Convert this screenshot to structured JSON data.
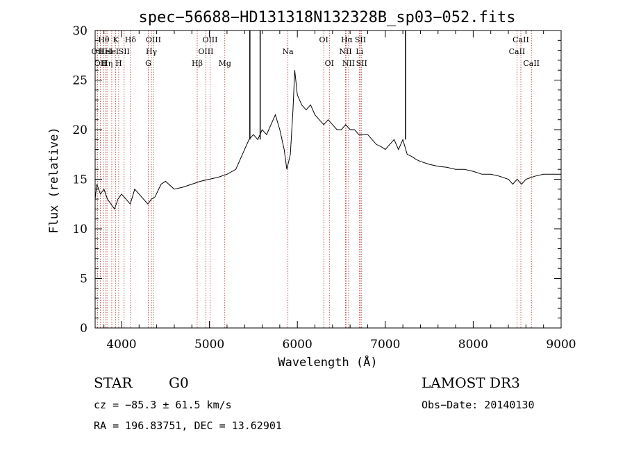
{
  "chart_data": {
    "type": "line",
    "title": "spec−56688−HD131318N132328B_sp03−052.fits",
    "xlabel": "Wavelength (Å)",
    "ylabel": "Flux (relative)",
    "xlim": [
      3700,
      9000
    ],
    "ylim": [
      0,
      30
    ],
    "x_ticks": [
      4000,
      5000,
      6000,
      7000,
      8000,
      9000
    ],
    "y_ticks": [
      0,
      5,
      10,
      15,
      20,
      25,
      30
    ],
    "grid": false,
    "series": [
      {
        "x": [
          3700,
          3720,
          3760,
          3800,
          3840,
          3880,
          3920,
          3960,
          4000,
          4050,
          4100,
          4150,
          4200,
          4250,
          4300,
          4340,
          4380,
          4450,
          4500,
          4600,
          4700,
          4800,
          4900,
          5000,
          5100,
          5200,
          5300,
          5400,
          5450,
          5500,
          5550,
          5600,
          5650,
          5700,
          5750,
          5800,
          5850,
          5880,
          5920,
          5950,
          5970,
          6000,
          6050,
          6100,
          6150,
          6200,
          6250,
          6300,
          6350,
          6400,
          6450,
          6500,
          6550,
          6600,
          6650,
          6700,
          6750,
          6800,
          6850,
          6900,
          6950,
          7000,
          7050,
          7100,
          7150,
          7200,
          7250,
          7300,
          7350,
          7400,
          7500,
          7600,
          7700,
          7800,
          7900,
          8000,
          8100,
          8200,
          8300,
          8400,
          8450,
          8500,
          8550,
          8600,
          8700,
          8800,
          8900,
          9000
        ],
        "y": [
          13,
          14.5,
          13.5,
          14,
          13,
          12.5,
          12,
          13,
          13.5,
          13,
          12.5,
          14,
          13.5,
          13,
          12.5,
          13,
          13.2,
          14.5,
          14.8,
          14,
          14.2,
          14.5,
          14.8,
          15,
          15.2,
          15.5,
          16,
          18,
          19,
          19.5,
          19,
          20,
          19.5,
          20.5,
          21.5,
          20,
          18,
          16,
          17.5,
          22,
          26,
          23.5,
          22.5,
          22,
          22.5,
          21.5,
          21,
          20.5,
          21,
          20.5,
          20,
          20,
          20.5,
          20,
          20,
          19.5,
          19.5,
          19.5,
          19,
          18.5,
          18.3,
          18,
          18.5,
          19,
          18,
          19,
          17.5,
          17.3,
          17,
          16.8,
          16.5,
          16.3,
          16.2,
          16,
          16,
          15.8,
          15.5,
          15.5,
          15.3,
          15,
          14.5,
          15,
          14.5,
          15,
          15.3,
          15.5,
          15.5,
          15.5
        ]
      }
    ],
    "spikes": [
      {
        "x": 5460,
        "y": 30
      },
      {
        "x": 5577,
        "y": 30
      },
      {
        "x": 7230,
        "y": 30
      }
    ],
    "spectral_lines": [
      {
        "x": 3727,
        "label": "OII",
        "row": 2
      },
      {
        "x": 3760,
        "label": "OII",
        "row": 3
      },
      {
        "x": 3798,
        "label": "Hθ",
        "row": 1
      },
      {
        "x": 3820,
        "label": "HeI",
        "row": 2
      },
      {
        "x": 3835,
        "label": "Hη",
        "row": 3
      },
      {
        "x": 3889,
        "label": "HeI",
        "row": 2
      },
      {
        "x": 3934,
        "label": "K",
        "row": 1
      },
      {
        "x": 3968,
        "label": "H",
        "row": 3
      },
      {
        "x": 4030,
        "label": "SII",
        "row": 2
      },
      {
        "x": 4102,
        "label": "Hδ",
        "row": 1
      },
      {
        "x": 4304,
        "label": "G",
        "row": 3
      },
      {
        "x": 4340,
        "label": "Hγ",
        "row": 2
      },
      {
        "x": 4363,
        "label": "OIII",
        "row": 1
      },
      {
        "x": 4861,
        "label": "Hβ",
        "row": 3
      },
      {
        "x": 4959,
        "label": "OIII",
        "row": 2
      },
      {
        "x": 5007,
        "label": "OIII",
        "row": 1
      },
      {
        "x": 5175,
        "label": "Mg",
        "row": 3
      },
      {
        "x": 5893,
        "label": "Na",
        "row": 2
      },
      {
        "x": 6300,
        "label": "OI",
        "row": 1
      },
      {
        "x": 6364,
        "label": "OI",
        "row": 3
      },
      {
        "x": 6548,
        "label": "NII",
        "row": 2
      },
      {
        "x": 6563,
        "label": "Hα",
        "row": 1
      },
      {
        "x": 6583,
        "label": "NII",
        "row": 3
      },
      {
        "x": 6707,
        "label": "Li",
        "row": 2
      },
      {
        "x": 6717,
        "label": "SII",
        "row": 1
      },
      {
        "x": 6731,
        "label": "SII",
        "row": 3
      },
      {
        "x": 8498,
        "label": "CaII",
        "row": 2
      },
      {
        "x": 8542,
        "label": "CaII",
        "row": 1
      },
      {
        "x": 8662,
        "label": "CaII",
        "row": 3
      }
    ]
  },
  "info": {
    "object_class": "STAR",
    "subclass": "G0",
    "survey": "LAMOST DR3",
    "redshift": "cz = −85.3 ± 61.5 km/s",
    "obs_date": "Obs−Date: 20140130",
    "coords": "RA = 196.83751, DEC =  13.62901"
  }
}
